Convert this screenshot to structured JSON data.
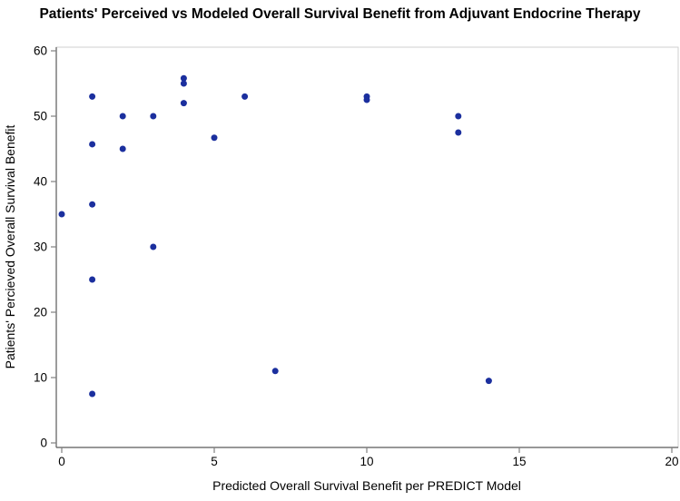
{
  "title": "Patients' Perceived vs Modeled Overall Survival Benefit from Adjuvant Endocrine Therapy",
  "chart_data": {
    "type": "scatter",
    "title": "Patients' Perceived vs Modeled Overall Survival Benefit from Adjuvant Endocrine Therapy",
    "xlabel": "Predicted Overall Survival Benefit per PREDICT Model",
    "ylabel": "Patients' Percieved Overall Survival Benefit",
    "xlim": [
      0,
      20
    ],
    "ylim": [
      0,
      60
    ],
    "x_ticks": [
      0,
      5,
      10,
      15,
      20
    ],
    "y_ticks": [
      0,
      10,
      20,
      30,
      40,
      50,
      60
    ],
    "grid": false,
    "legend": "none",
    "marker_color": "#1B2F9E",
    "points": [
      {
        "x": 0,
        "y": 35
      },
      {
        "x": 1,
        "y": 53
      },
      {
        "x": 1,
        "y": 45.7
      },
      {
        "x": 1,
        "y": 36.5
      },
      {
        "x": 1,
        "y": 25
      },
      {
        "x": 1,
        "y": 7.5
      },
      {
        "x": 2,
        "y": 50
      },
      {
        "x": 2,
        "y": 45
      },
      {
        "x": 3,
        "y": 50
      },
      {
        "x": 3,
        "y": 30
      },
      {
        "x": 4,
        "y": 55.8
      },
      {
        "x": 4,
        "y": 55
      },
      {
        "x": 4,
        "y": 52
      },
      {
        "x": 5,
        "y": 46.7
      },
      {
        "x": 6,
        "y": 53
      },
      {
        "x": 7,
        "y": 11
      },
      {
        "x": 10,
        "y": 53
      },
      {
        "x": 10,
        "y": 52.5
      },
      {
        "x": 13,
        "y": 50
      },
      {
        "x": 13,
        "y": 47.5
      },
      {
        "x": 14,
        "y": 9.5
      }
    ]
  }
}
